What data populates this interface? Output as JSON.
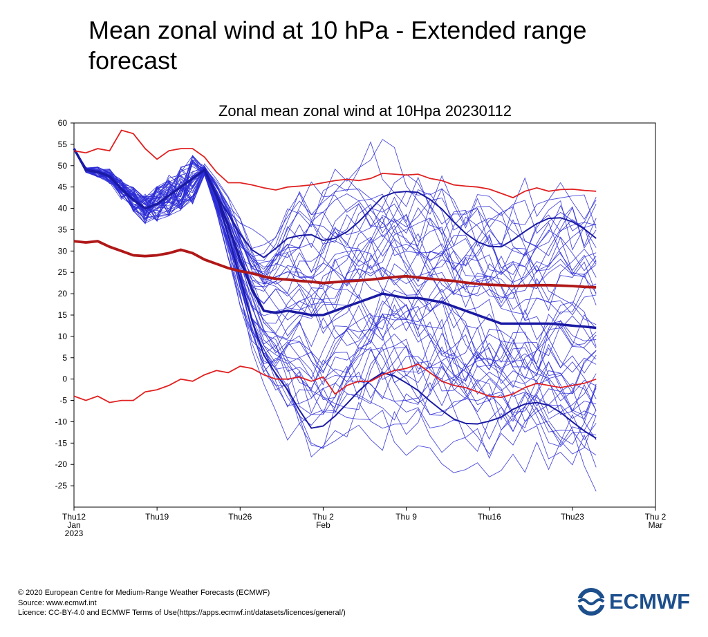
{
  "page": {
    "title": "Mean zonal wind at 10 hPa - Extended range forecast"
  },
  "footer": {
    "copyright": "© 2020 European Centre for Medium-Range Weather Forecasts (ECMWF)",
    "source": "Source: www.ecmwf.int",
    "licence": "Licence: CC-BY-4.0 and ECMWF Terms of Use(https://apps.ecmwf.int/datasets/licences/general/)"
  },
  "logo": {
    "text": "ECMWF",
    "color": "#1d4f8c"
  },
  "chart_data": {
    "type": "line",
    "title": "Zonal mean zonal wind at 10Hpa 20230112",
    "xlabel": "",
    "ylabel": "",
    "ylim": [
      -30,
      60
    ],
    "xlim_days": [
      0,
      49
    ],
    "x_ticks": [
      {
        "day": 0,
        "lines": [
          "Thu12",
          "Jan",
          "2023"
        ]
      },
      {
        "day": 7,
        "lines": [
          "Thu19"
        ]
      },
      {
        "day": 14,
        "lines": [
          "Thu26"
        ]
      },
      {
        "day": 21,
        "lines": [
          "Thu 2",
          "Feb"
        ]
      },
      {
        "day": 28,
        "lines": [
          "Thu 9"
        ]
      },
      {
        "day": 35,
        "lines": [
          "Thu16"
        ]
      },
      {
        "day": 42,
        "lines": [
          "Thu23"
        ]
      },
      {
        "day": 49,
        "lines": [
          "Thu 2",
          "Mar"
        ]
      }
    ],
    "y_ticks": [
      60,
      55,
      50,
      45,
      40,
      35,
      30,
      25,
      20,
      15,
      10,
      5,
      0,
      -5,
      -10,
      -15,
      -20,
      -25
    ],
    "grid": false,
    "colors": {
      "ensemble": "#2b2bd6",
      "mean": "#1a1aa3",
      "climate_extremes": "#e02020",
      "climate_mean": "#b01818"
    },
    "climatology": {
      "x_days": [
        0,
        1,
        2,
        3,
        4,
        5,
        6,
        7,
        8,
        9,
        10,
        11,
        12,
        13,
        14,
        15,
        16,
        17,
        18,
        19,
        20,
        21,
        22,
        23,
        24,
        25,
        26,
        27,
        28,
        29,
        30,
        31,
        32,
        33,
        34,
        35,
        36,
        37,
        38,
        39,
        40,
        41,
        42,
        43,
        44
      ],
      "max": [
        53.5,
        53,
        54,
        53.5,
        58.3,
        57.5,
        54,
        51.5,
        53.5,
        54,
        54,
        52,
        48.5,
        46,
        46,
        45.5,
        44.8,
        44.3,
        45,
        45.2,
        45.5,
        46,
        46.5,
        46.8,
        46.5,
        47,
        48.2,
        48,
        47.8,
        48,
        47,
        46.5,
        45.5,
        45.2,
        45,
        44.5,
        43.5,
        42.5,
        44,
        44.8,
        44,
        44.4,
        44.5,
        44.2,
        44
      ],
      "mean": [
        32.3,
        32,
        32.3,
        31,
        30,
        29,
        28.8,
        29,
        29.5,
        30.3,
        29.5,
        28,
        27,
        26,
        25.3,
        24.8,
        24,
        23.5,
        23.3,
        23,
        22.8,
        22.5,
        22.7,
        22.9,
        23.1,
        23.3,
        23.6,
        23.9,
        24.1,
        23.8,
        23.5,
        23.2,
        23,
        22.6,
        22.3,
        22.1,
        22,
        21.8,
        21.9,
        22,
        22,
        21.9,
        21.8,
        21.6,
        21.5
      ],
      "min": [
        -4,
        -5,
        -4,
        -5.5,
        -5,
        -5,
        -3,
        -2.5,
        -1.5,
        0,
        -0.5,
        1,
        2,
        1.5,
        3,
        2.5,
        1,
        0,
        0,
        0.5,
        -0.5,
        0.5,
        -3.5,
        -1.5,
        -0.5,
        -0.5,
        1,
        2,
        2.5,
        3.5,
        1.5,
        -0.5,
        -1.5,
        -2,
        -3,
        -4,
        -4.3,
        -3.5,
        -2,
        -1,
        -1.5,
        -2,
        -1.5,
        -1,
        0
      ]
    },
    "ensemble": {
      "x_days_mean": [
        0,
        1,
        2,
        3,
        4,
        5,
        6,
        7,
        8,
        9,
        10,
        11,
        12,
        13,
        14,
        15,
        16,
        17,
        18,
        19,
        20,
        21,
        22,
        23,
        24,
        25,
        26,
        27,
        28,
        29,
        30,
        31,
        32,
        33,
        34,
        35,
        36,
        37,
        38,
        39,
        40,
        41,
        42,
        43,
        44
      ],
      "mean": [
        54,
        49,
        48.5,
        47.5,
        44.5,
        42,
        40,
        41,
        43,
        45,
        47,
        49,
        43,
        36,
        28,
        21,
        16,
        15.5,
        16,
        15.5,
        15,
        15,
        16,
        17,
        18,
        19,
        20,
        19.5,
        19,
        19,
        18.5,
        18,
        17,
        16,
        15,
        14,
        13,
        13,
        13,
        13,
        13,
        12.8,
        12.5,
        12.3,
        12
      ],
      "member_count": 51,
      "member_range_after_spinup": [
        -28,
        58
      ],
      "highlighted_members": [
        {
          "name": "",
          "end": 33
        },
        {
          "name": "",
          "end": -10.5
        }
      ]
    }
  }
}
